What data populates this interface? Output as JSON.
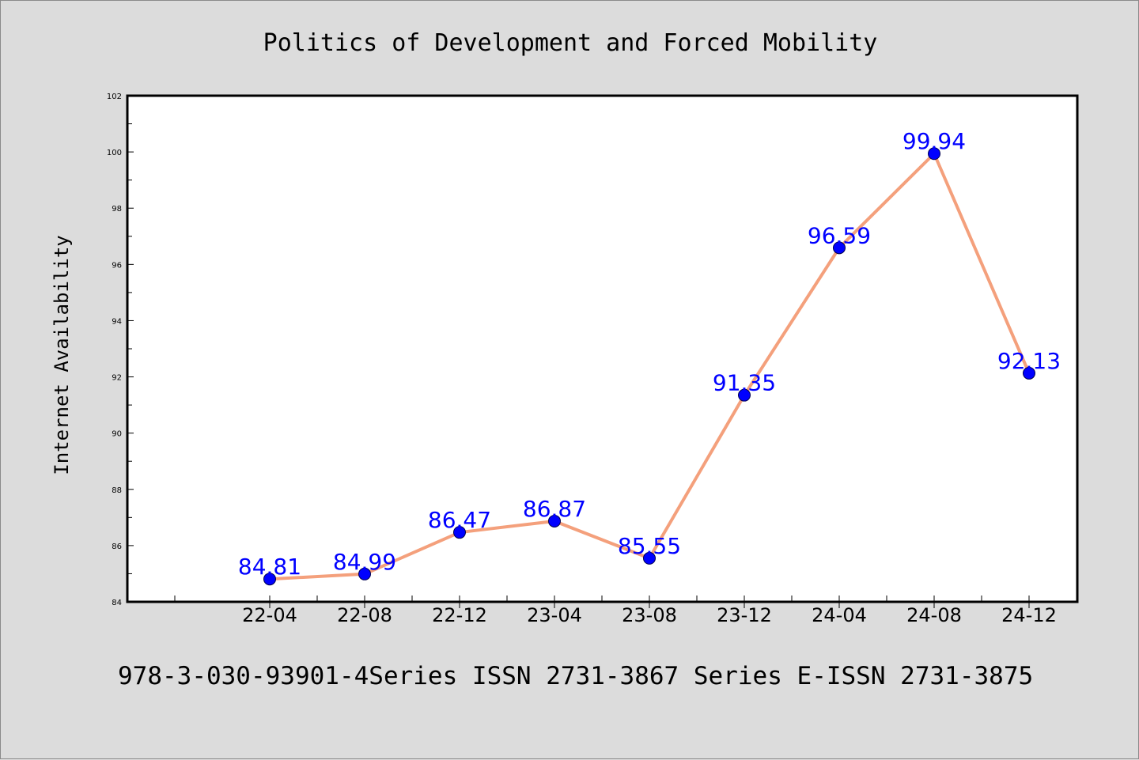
{
  "page": {
    "footer_text": "978-3-030-93901-4Series ISSN 2731-3867 Series E-ISSN 2731-3875"
  },
  "colors": {
    "background": "#dcdcdc",
    "plot_background": "#ffffff",
    "line": "#f4a07c",
    "marker": "#0000ff",
    "label": "#0000ff"
  },
  "chart_data": {
    "type": "line",
    "title": "Politics of Development and Forced Mobility",
    "xlabel": "",
    "ylabel": "Internet Availability",
    "categories": [
      "22-04",
      "22-08",
      "22-12",
      "23-04",
      "23-08",
      "23-12",
      "24-04",
      "24-08",
      "24-12"
    ],
    "series": [
      {
        "values": [
          84.81,
          84.99,
          86.47,
          86.87,
          85.55,
          91.35,
          96.59,
          99.94,
          92.13
        ]
      }
    ],
    "data_labels": [
      "84.81",
      "84.99",
      "86.47",
      "86.87",
      "85.55",
      "91.35",
      "96.59",
      "99.94",
      "92.13"
    ],
    "ylim": [
      84,
      102
    ],
    "yticks": [
      "84",
      "86",
      "88",
      "90",
      "92",
      "94",
      "96",
      "98",
      "100",
      "102"
    ],
    "grid": false,
    "legend": "none",
    "markers": true
  }
}
